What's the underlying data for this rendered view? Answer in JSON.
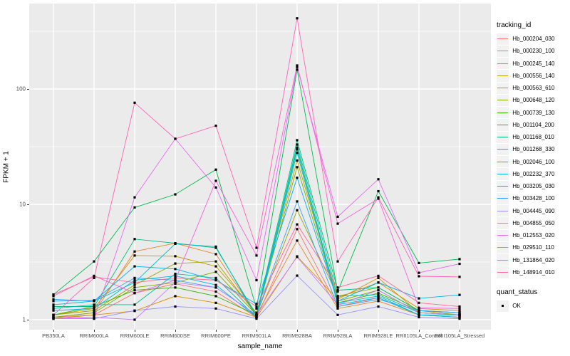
{
  "chart_data": {
    "type": "line",
    "title": "",
    "xlabel": "sample_name",
    "ylabel": "FPKM + 1",
    "y_scale": "log10",
    "ylim": [
      1,
      460
    ],
    "y_ticks": [
      1,
      10,
      100
    ],
    "y_minor_ticks": [
      3.162,
      31.62,
      316.2
    ],
    "grid": "on",
    "legend_position": "right",
    "legend_title": "tracking_id",
    "legend2_title": "quant_status",
    "quant_status": {
      "label": "OK",
      "marker": "black-square"
    },
    "point_marker": "black-square",
    "x_categories": [
      "PB350LA",
      "RRIM600LA",
      "RRIM600LE",
      "RRIM600SE",
      "RRIM600PE",
      "RRIM901LA",
      "RRIM928BA",
      "RRIM928LA",
      "RRIM928LE",
      "RRII105LA_Control",
      "RRII105LA_Stressed"
    ],
    "series": [
      {
        "name": "Hb_000204_030",
        "color": "#F8766D",
        "values": [
          1.05,
          1.1,
          1.7,
          2.05,
          1.75,
          1.05,
          6.1,
          1.3,
          1.55,
          1.1,
          1.05
        ]
      },
      {
        "name": "Hb_000230_100",
        "color": "#EA8331",
        "values": [
          1.05,
          1.15,
          3.9,
          4.6,
          3.7,
          1.1,
          4.85,
          1.25,
          1.45,
          1.1,
          1.05
        ]
      },
      {
        "name": "Hb_000245_140",
        "color": "#D89000",
        "values": [
          1.02,
          1.1,
          1.19,
          1.6,
          1.4,
          1.05,
          3.54,
          1.5,
          2.3,
          1.15,
          1.1
        ]
      },
      {
        "name": "Hb_000556_140",
        "color": "#C09B00",
        "values": [
          1.1,
          1.25,
          3.6,
          3.55,
          2.9,
          1.15,
          24,
          1.55,
          2.1,
          1.25,
          1.2
        ]
      },
      {
        "name": "Hb_000563_610",
        "color": "#A3A500",
        "values": [
          1.1,
          1.2,
          2.0,
          3.07,
          3.2,
          1.1,
          8.9,
          1.6,
          1.9,
          1.2,
          1.1
        ]
      },
      {
        "name": "Hb_000648_120",
        "color": "#7CAE00",
        "values": [
          1.05,
          1.15,
          1.9,
          2.1,
          2.6,
          1.1,
          21,
          1.45,
          1.8,
          1.15,
          1.1
        ]
      },
      {
        "name": "Hb_000739_130",
        "color": "#39B600",
        "values": [
          1.1,
          1.3,
          1.8,
          1.9,
          1.6,
          1.1,
          30,
          1.4,
          1.7,
          1.2,
          1.15
        ]
      },
      {
        "name": "Hb_001104_200",
        "color": "#00BB4E",
        "values": [
          1.65,
          3.2,
          9.4,
          12.2,
          20,
          1.25,
          147,
          1.75,
          13,
          3.1,
          3.35
        ]
      },
      {
        "name": "Hb_001168_010",
        "color": "#00BF7D",
        "values": [
          1.3,
          1.3,
          5.0,
          4.6,
          4.2,
          1.1,
          36,
          1.8,
          1.9,
          1.2,
          1.15
        ]
      },
      {
        "name": "Hb_001268_330",
        "color": "#00C1A3",
        "values": [
          1.25,
          1.35,
          1.35,
          2.5,
          2.3,
          1.05,
          33,
          1.6,
          1.65,
          1.15,
          1.1
        ]
      },
      {
        "name": "Hb_002046_100",
        "color": "#00BFC4",
        "values": [
          1.35,
          1.45,
          2.1,
          4.55,
          4.3,
          1.05,
          31,
          1.4,
          1.6,
          1.1,
          1.1
        ]
      },
      {
        "name": "Hb_002232_370",
        "color": "#00BAE0",
        "values": [
          1.2,
          1.25,
          2.2,
          2.4,
          2.0,
          1.05,
          28,
          1.35,
          1.55,
          1.1,
          1.05
        ]
      },
      {
        "name": "Hb_003205_030",
        "color": "#00B0F6",
        "values": [
          1.5,
          1.45,
          2.9,
          2.75,
          2.2,
          1.37,
          17,
          1.45,
          2.1,
          1.53,
          1.64
        ]
      },
      {
        "name": "Hb_003428_100",
        "color": "#35A2FF",
        "values": [
          1.45,
          1.47,
          2.3,
          2.2,
          1.9,
          1.1,
          10.6,
          1.3,
          1.5,
          1.2,
          1.15
        ]
      },
      {
        "name": "Hb_004445_090",
        "color": "#9590FF",
        "values": [
          1.02,
          1.02,
          1.2,
          1.3,
          1.25,
          1.02,
          2.41,
          1.1,
          1.3,
          1.05,
          1.02
        ]
      },
      {
        "name": "Hb_004855_050",
        "color": "#C77CFF",
        "values": [
          1.02,
          1.05,
          1.0,
          2.1,
          1.9,
          1.1,
          3.5,
          1.35,
          1.8,
          1.15,
          1.1
        ]
      },
      {
        "name": "Hb_012553_020",
        "color": "#E76BF3",
        "values": [
          1.05,
          1.02,
          11.5,
          37,
          14,
          2.2,
          155,
          7.8,
          16.5,
          2.55,
          3.05
        ]
      },
      {
        "name": "Hb_029510_110",
        "color": "#FA62DB",
        "values": [
          1.6,
          2.4,
          1.7,
          2.2,
          16,
          3.6,
          160,
          6.8,
          11.2,
          1.27,
          1.25
        ]
      },
      {
        "name": "Hb_131864_020",
        "color": "#FF62BC",
        "values": [
          1.1,
          2.3,
          76,
          37,
          48,
          4.2,
          410,
          3.2,
          11.5,
          2.38,
          2.35
        ]
      },
      {
        "name": "Hb_148914_010",
        "color": "#FF6A98",
        "values": [
          1.65,
          2.35,
          2.1,
          2.3,
          2.2,
          1.3,
          6.7,
          1.9,
          2.4,
          1.4,
          1.3
        ]
      }
    ]
  },
  "colors": {
    "panel_bg": "#EBEBEB",
    "gridline": "#FFFFFF",
    "tick_text": "#4D4D4D",
    "axis_title_text": "#000000",
    "point": "#000000",
    "legend_key_bg": "#F2F2F2"
  }
}
